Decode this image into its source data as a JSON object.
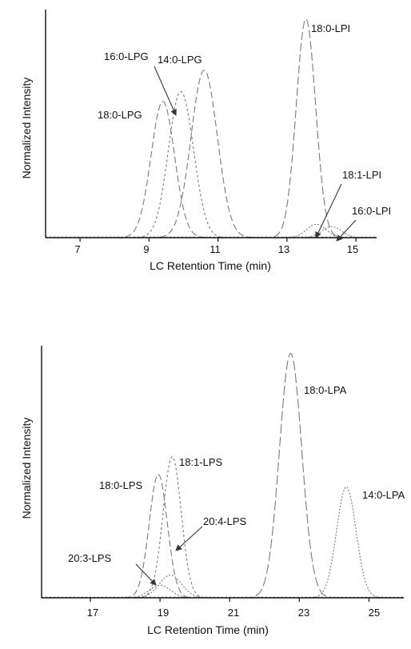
{
  "colors": {
    "axis": "#111111",
    "trace": "#7a7a7a",
    "trace_dark": "#444444"
  },
  "chart_data": [
    {
      "type": "line",
      "xlabel": "LC Retention Time (min)",
      "ylabel": "Normalized Intensity",
      "xlim": [
        6,
        15.6
      ],
      "ylim": [
        0,
        1.0
      ],
      "x_ticks": [
        "7",
        "9",
        "11",
        "13",
        "15"
      ],
      "x_tick_values": [
        7,
        9,
        11,
        13,
        15
      ],
      "grid": false,
      "series": [
        {
          "name": "18:0-LPG",
          "dash": "8,4",
          "peak": {
            "rt": 9.4,
            "height": 0.61,
            "width": 0.34
          },
          "shoulders": []
        },
        {
          "name": "16:0-LPG",
          "dash": "3,3",
          "peak": {
            "rt": 9.85,
            "height": 0.55,
            "width": 0.33
          },
          "shoulders": [
            {
              "rt": 10.2,
              "height": 0.18,
              "width": 0.3
            }
          ]
        },
        {
          "name": "14:0-LPG",
          "dash": "8,4",
          "peak": {
            "rt": 10.6,
            "height": 0.75,
            "width": 0.38
          },
          "shoulders": []
        },
        {
          "name": "18:0-LPI",
          "dash": "10,4",
          "peak": {
            "rt": 13.55,
            "height": 0.98,
            "width": 0.28
          },
          "shoulders": []
        },
        {
          "name": "18:1-LPI",
          "dash": "2,2",
          "peak": {
            "rt": 13.85,
            "height": 0.06,
            "width": 0.28
          },
          "shoulders": []
        },
        {
          "name": "16:0-LPI",
          "dash": "2,2",
          "peak": {
            "rt": 14.3,
            "height": 0.05,
            "width": 0.28
          },
          "shoulders": []
        }
      ],
      "annotations": [
        {
          "text": "18:0-LPG",
          "series": "18:0-LPG"
        },
        {
          "text": "16:0-LPG",
          "series": "16:0-LPG",
          "arrow": true
        },
        {
          "text": "14:0-LPG",
          "series": "14:0-LPG"
        },
        {
          "text": "18:0-LPI",
          "series": "18:0-LPI"
        },
        {
          "text": "18:1-LPI",
          "series": "18:1-LPI",
          "arrow": true
        },
        {
          "text": "16:0-LPI",
          "series": "16:0-LPI",
          "arrow": true
        }
      ]
    },
    {
      "type": "line",
      "xlabel": "LC Retention Time (min)",
      "ylabel": "Normalized Intensity",
      "xlim": [
        15.6,
        26
      ],
      "ylim": [
        0,
        1.0
      ],
      "x_ticks": [
        "17",
        "19",
        "21",
        "23",
        "25"
      ],
      "x_tick_values": [
        17,
        19,
        21,
        23,
        25
      ],
      "grid": false,
      "series": [
        {
          "name": "18:0-LPS",
          "dash": "8,4",
          "peak": {
            "rt": 18.95,
            "height": 0.49,
            "width": 0.26
          },
          "shoulders": []
        },
        {
          "name": "18:1-LPS",
          "dash": "3,3",
          "peak": {
            "rt": 19.35,
            "height": 0.56,
            "width": 0.26
          },
          "shoulders": []
        },
        {
          "name": "20:3-LPS",
          "dash": "2,2",
          "peak": {
            "rt": 19.0,
            "height": 0.05,
            "width": 0.3
          },
          "shoulders": []
        },
        {
          "name": "20:4-LPS",
          "dash": "2,2",
          "peak": {
            "rt": 19.3,
            "height": 0.09,
            "width": 0.32
          },
          "shoulders": []
        },
        {
          "name": "18:0-LPA",
          "dash": "12,4",
          "peak": {
            "rt": 22.75,
            "height": 0.97,
            "width": 0.32
          },
          "shoulders": []
        },
        {
          "name": "14:0-LPA",
          "dash": "2,2",
          "peak": {
            "rt": 24.35,
            "height": 0.44,
            "width": 0.28
          },
          "shoulders": [
            {
              "rt": 21.55,
              "height": 0.08,
              "width": 0.3
            }
          ]
        }
      ],
      "annotations": [
        {
          "text": "18:0-LPS",
          "series": "18:0-LPS"
        },
        {
          "text": "18:1-LPS",
          "series": "18:1-LPS"
        },
        {
          "text": "20:3-LPS",
          "series": "20:3-LPS",
          "arrow": true
        },
        {
          "text": "20:4-LPS",
          "series": "20:4-LPS",
          "arrow": true
        },
        {
          "text": "18:0-LPA",
          "series": "18:0-LPA"
        },
        {
          "text": "14:0-LPA",
          "series": "14:0-LPA"
        }
      ]
    }
  ]
}
